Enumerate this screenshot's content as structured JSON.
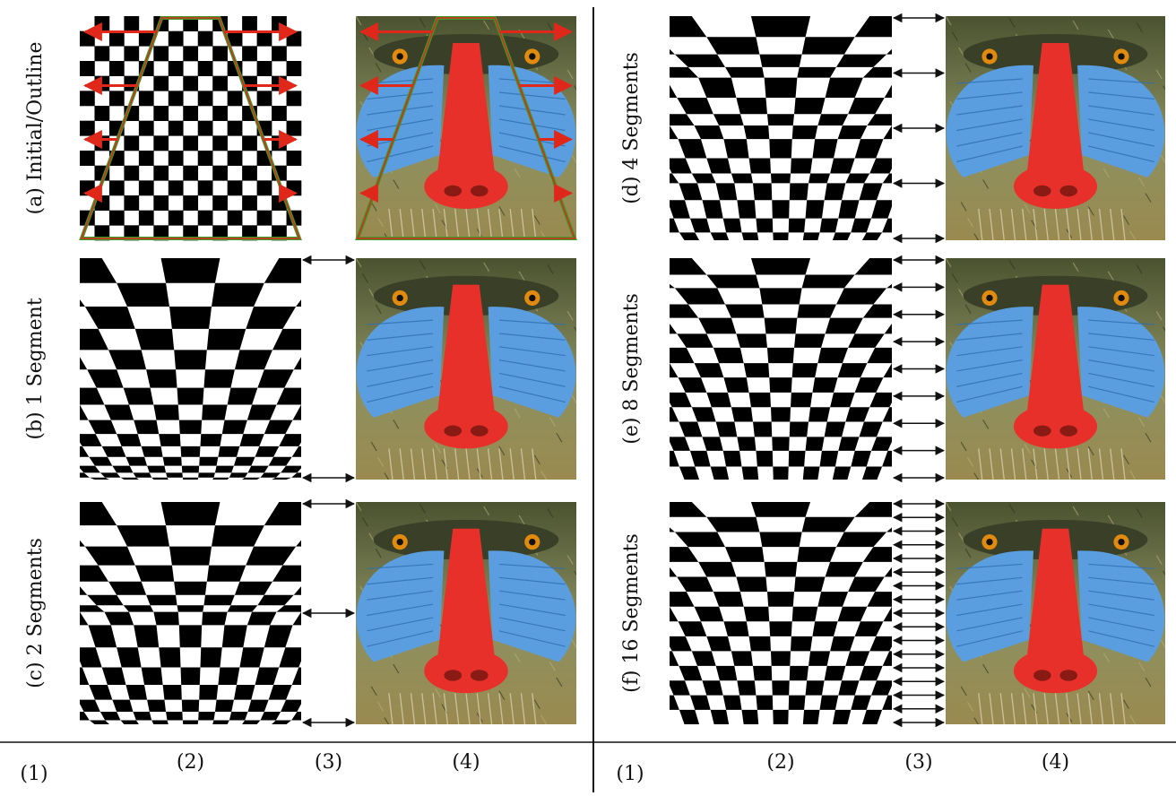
{
  "left_panel": {
    "rows": [
      {
        "label": "(a) Initial/Outline",
        "mode": "initial"
      },
      {
        "label": "(b) 1 Segment",
        "mode": "warp",
        "segments": 1
      },
      {
        "label": "(c) 2 Segments",
        "mode": "warp",
        "segments": 2
      }
    ],
    "columns": [
      "(1)",
      "(2)",
      "(3)",
      "(4)"
    ]
  },
  "right_panel": {
    "rows": [
      {
        "label": "(d) 4 Segments",
        "mode": "warp",
        "segments": 4
      },
      {
        "label": "(e) 8 Segments",
        "mode": "warp",
        "segments": 8
      },
      {
        "label": "(f) 16 Segments",
        "mode": "warp",
        "segments": 16
      }
    ],
    "columns": [
      "(1)",
      "(2)",
      "(3)",
      "(4)"
    ]
  },
  "figure": {
    "checker_cells": 15,
    "colors": {
      "outline_green": "#3a9a2a",
      "arrow_red": "#e0281a",
      "fur_dark": "#4a5230",
      "fur_light": "#8c9060",
      "nose_red": "#e8302a",
      "cheek_blue": "#5a9ee0",
      "eye_orange": "#e08a10",
      "whisker_light": "#d8d0b0"
    },
    "photo_subject": "mandrill-face"
  }
}
